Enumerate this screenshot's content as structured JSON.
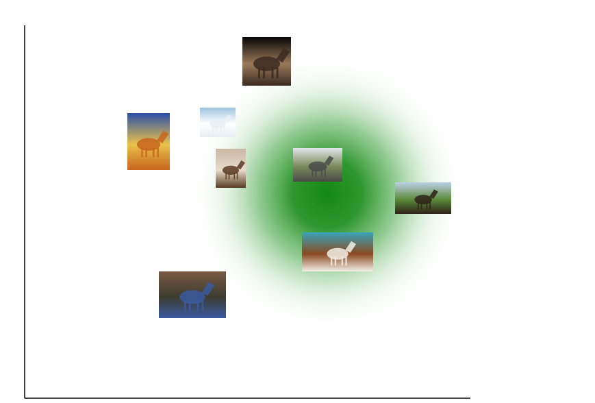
{
  "chart_data": {
    "type": "scatter",
    "title": "",
    "xlabel": "",
    "ylabel": "",
    "grid": false,
    "legend": false,
    "axes_visible": [
      "left",
      "bottom"
    ],
    "tick_labels_visible": false,
    "background_density": {
      "shape": "radial-gaussian",
      "color": "#1a8a1a",
      "peak_opacity": 0.95
    },
    "points": [
      {
        "id": "horse-on-black",
        "icon": "horse-black-background-thumbnail",
        "palette": [
          "#060606",
          "#3a2a20",
          "#9a7a5a"
        ]
      },
      {
        "id": "white-horse",
        "icon": "white-horse-thumbnail",
        "palette": [
          "#9ec4e0",
          "#e8eef2",
          "#ffffff"
        ]
      },
      {
        "id": "painted-horse",
        "icon": "colorful-painted-horse-thumbnail",
        "palette": [
          "#2a4fa8",
          "#c8641e",
          "#e9c24a"
        ]
      },
      {
        "id": "horse-closeup",
        "icon": "horse-closeup-thumbnail",
        "palette": [
          "#c9b8a5",
          "#5a3a22",
          "#e8dccb"
        ]
      },
      {
        "id": "two-grey-horses",
        "icon": "two-grey-horses-thumbnail",
        "palette": [
          "#dfe6ea",
          "#4a4a4a",
          "#7a8a5a"
        ]
      },
      {
        "id": "horse-with-man",
        "icon": "horse-with-man-thumbnail",
        "palette": [
          "#bcd0e6",
          "#2e2218",
          "#5a8a3a"
        ]
      },
      {
        "id": "horses-on-beach",
        "icon": "horses-on-beach-thumbnail",
        "palette": [
          "#3aa4b8",
          "#f2f0e8",
          "#8a4a22"
        ]
      },
      {
        "id": "fallen-horse",
        "icon": "fallen-horse-thumbnail",
        "palette": [
          "#7a5a44",
          "#3a5aa0",
          "#3c3c30"
        ]
      }
    ]
  }
}
